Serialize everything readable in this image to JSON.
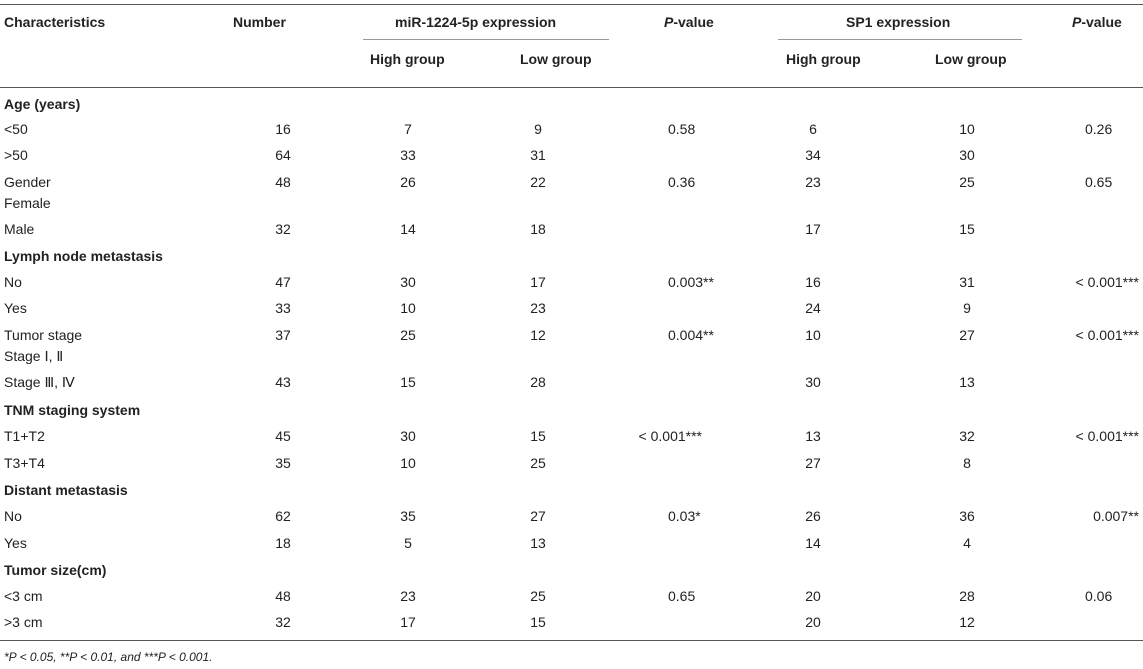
{
  "headers": {
    "characteristics": "Characteristics",
    "number": "Number",
    "mir_group": "miR-1224-5p expression",
    "p_value_1": "P-value",
    "sp1_group": "SP1 expression",
    "p_value_2": "P-value",
    "high_group_1": "High group",
    "low_group_1": "Low group",
    "high_group_2": "High group",
    "low_group_2": "Low group"
  },
  "sections": {
    "age": "Age (years)",
    "lymph": "Lymph node metastasis",
    "tnm": "TNM staging system",
    "distant": "Distant metastasis",
    "tumor_size": "Tumor size(cm)"
  },
  "rows": {
    "age_lt50": {
      "label": "<50",
      "number": "16",
      "mh": "7",
      "ml": "9",
      "mp": "0.58",
      "sh": "6",
      "sl": "10",
      "sp": "0.26"
    },
    "age_gt50": {
      "label": ">50",
      "number": "64",
      "mh": "33",
      "ml": "31",
      "mp": "",
      "sh": "34",
      "sl": "30",
      "sp": ""
    },
    "gender_female": {
      "label_top": "Gender",
      "label_bottom": "Female",
      "number": "48",
      "mh": "26",
      "ml": "22",
      "mp": "0.36",
      "sh": "23",
      "sl": "25",
      "sp": "0.65"
    },
    "male": {
      "label": "Male",
      "number": "32",
      "mh": "14",
      "ml": "18",
      "mp": "",
      "sh": "17",
      "sl": "15",
      "sp": ""
    },
    "lymph_no": {
      "label": "No",
      "number": "47",
      "mh": "30",
      "ml": "17",
      "mp": "0.003**",
      "sh": "16",
      "sl": "31",
      "sp": "< 0.001***"
    },
    "lymph_yes": {
      "label": "Yes",
      "number": "33",
      "mh": "10",
      "ml": "23",
      "mp": "",
      "sh": "24",
      "sl": "9",
      "sp": ""
    },
    "tumor_stage_12": {
      "label_top": "Tumor stage",
      "label_bottom": "Stage Ⅰ, Ⅱ",
      "number": "37",
      "mh": "25",
      "ml": "12",
      "mp": "0.004**",
      "sh": "10",
      "sl": "27",
      "sp": "< 0.001***"
    },
    "stage_34": {
      "label": "Stage Ⅲ, Ⅳ",
      "number": "43",
      "mh": "15",
      "ml": "28",
      "mp": "",
      "sh": "30",
      "sl": "13",
      "sp": ""
    },
    "t1t2": {
      "label": "T1+T2",
      "number": "45",
      "mh": "30",
      "ml": "15",
      "mp": "< 0.001***",
      "sh": "13",
      "sl": "32",
      "sp": "< 0.001***"
    },
    "t3t4": {
      "label": "T3+T4",
      "number": "35",
      "mh": "10",
      "ml": "25",
      "mp": "",
      "sh": "27",
      "sl": "8",
      "sp": ""
    },
    "distant_no": {
      "label": "No",
      "number": "62",
      "mh": "35",
      "ml": "27",
      "mp": "0.03*",
      "sh": "26",
      "sl": "36",
      "sp": "0.007**"
    },
    "distant_yes": {
      "label": "Yes",
      "number": "18",
      "mh": "5",
      "ml": "13",
      "mp": "",
      "sh": "14",
      "sl": "4",
      "sp": ""
    },
    "size_lt3": {
      "label": "<3 cm",
      "number": "48",
      "mh": "23",
      "ml": "25",
      "mp": "0.65",
      "sh": "20",
      "sl": "28",
      "sp": "0.06"
    },
    "size_gt3": {
      "label": ">3 cm",
      "number": "32",
      "mh": "17",
      "ml": "15",
      "mp": "",
      "sh": "20",
      "sl": "12",
      "sp": ""
    }
  },
  "footnote": "*P < 0.05, **P < 0.01, and ***P < 0.001."
}
